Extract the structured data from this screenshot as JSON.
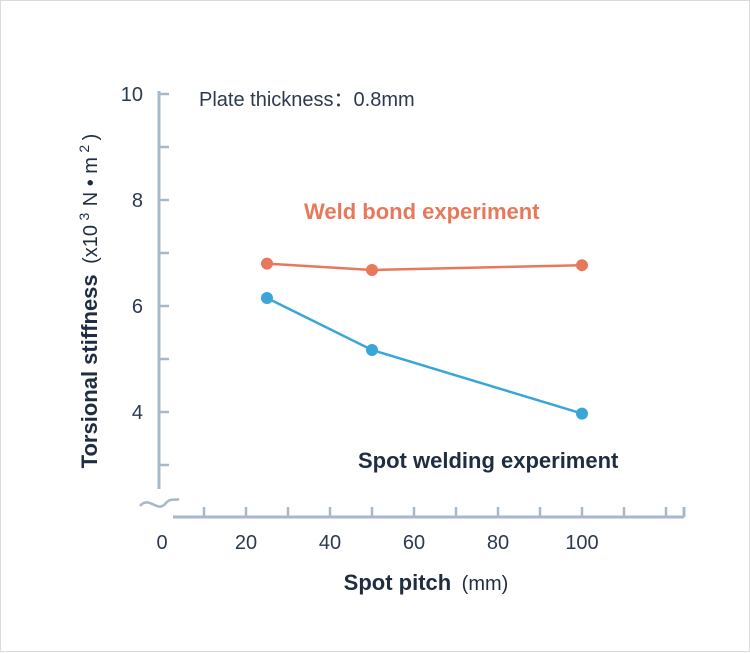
{
  "chart_data": {
    "type": "line",
    "annotation": "Plate thickness：0.8mm",
    "xlabel": "Spot pitch",
    "xlabel_unit": "(mm)",
    "ylabel": "Torsional stiffness",
    "ylabel_unit_prefix": "(x10",
    "ylabel_unit_exp": "3",
    "ylabel_unit_mid": "N • m",
    "ylabel_unit_exp2": "2",
    "ylabel_unit_suffix": ")",
    "xlim": [
      0,
      120
    ],
    "ylim": [
      3,
      10
    ],
    "axis_break_y": true,
    "x_ticks": [
      0,
      20,
      40,
      60,
      80,
      100
    ],
    "x_tick_labels": [
      "0",
      "20",
      "40",
      "60",
      "80",
      "100"
    ],
    "x_minor_step": 10,
    "y_ticks": [
      4,
      6,
      8,
      10
    ],
    "y_tick_labels": [
      "4",
      "6",
      "8",
      "10"
    ],
    "y_minor_step": 1,
    "grid": false,
    "series": [
      {
        "name": "Weld bond experiment",
        "color": "#e8785a",
        "x": [
          25,
          50,
          100
        ],
        "values": [
          6.8,
          6.68,
          6.77
        ]
      },
      {
        "name": "Spot welding experiment",
        "color": "#3aa6d8",
        "x": [
          25,
          50,
          100
        ],
        "values": [
          6.15,
          5.17,
          3.97
        ]
      }
    ],
    "axis_color": "#a7b8c8",
    "text_color": "#2b3a4e"
  }
}
